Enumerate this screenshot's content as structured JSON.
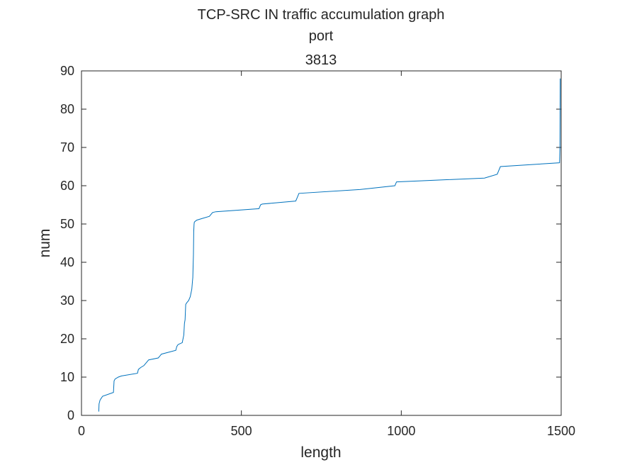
{
  "chart_data": {
    "type": "line",
    "title_lines": [
      "TCP-SRC IN traffic accumulation graph",
      "port",
      "3813"
    ],
    "xlabel": "length",
    "ylabel": "num",
    "xlim": [
      0,
      1500
    ],
    "ylim": [
      0,
      90
    ],
    "x_ticks": [
      0,
      500,
      1000,
      1500
    ],
    "y_ticks": [
      0,
      10,
      20,
      30,
      40,
      50,
      60,
      70,
      80,
      90
    ],
    "grid": false,
    "line_color": "#0072BD",
    "axis_color": "#262626",
    "series": [
      {
        "x": [
          54,
          55,
          58,
          62,
          66,
          100,
          102,
          105,
          115,
          125,
          175,
          178,
          185,
          195,
          200,
          205,
          210,
          240,
          245,
          250,
          295,
          298,
          302,
          315,
          320,
          322,
          324,
          326,
          330,
          335,
          340,
          345,
          347,
          348,
          350,
          351,
          352,
          353,
          360,
          380,
          400,
          410,
          420,
          555,
          560,
          565,
          670,
          675,
          680,
          870,
          980,
          985,
          1260,
          1300,
          1310,
          1495,
          1496,
          1497
        ],
        "y": [
          1,
          3,
          4,
          4.5,
          5,
          6,
          9,
          9.5,
          10,
          10.3,
          11,
          12,
          12.5,
          13,
          13.5,
          14,
          14.5,
          15,
          15.5,
          16,
          17,
          18,
          18.5,
          19,
          21,
          24,
          25,
          29,
          29.5,
          30,
          31,
          33,
          35,
          36,
          42,
          48,
          50,
          50.5,
          51,
          51.5,
          52,
          53,
          53.2,
          54,
          55,
          55.2,
          56,
          57,
          58,
          59,
          60,
          61,
          62,
          63,
          65,
          66,
          70,
          88
        ]
      }
    ]
  }
}
